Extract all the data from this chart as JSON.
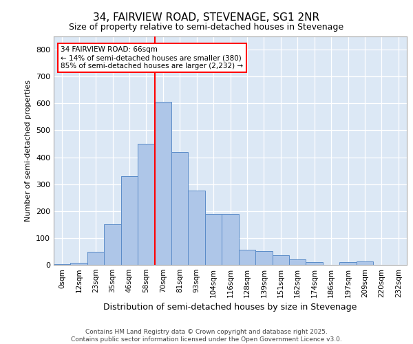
{
  "title1": "34, FAIRVIEW ROAD, STEVENAGE, SG1 2NR",
  "title2": "Size of property relative to semi-detached houses in Stevenage",
  "xlabel": "Distribution of semi-detached houses by size in Stevenage",
  "ylabel": "Number of semi-detached properties",
  "bin_labels": [
    "0sqm",
    "12sqm",
    "23sqm",
    "35sqm",
    "46sqm",
    "58sqm",
    "70sqm",
    "81sqm",
    "93sqm",
    "104sqm",
    "116sqm",
    "128sqm",
    "139sqm",
    "151sqm",
    "162sqm",
    "174sqm",
    "186sqm",
    "197sqm",
    "209sqm",
    "220sqm",
    "232sqm"
  ],
  "bar_heights": [
    2,
    8,
    48,
    150,
    330,
    450,
    605,
    420,
    275,
    190,
    190,
    55,
    50,
    37,
    20,
    10,
    0,
    10,
    12,
    0,
    0
  ],
  "bar_color": "#aec6e8",
  "bar_edge_color": "#5b8cc8",
  "red_line_x": 6.0,
  "annotation_text": "34 FAIRVIEW ROAD: 66sqm\n← 14% of semi-detached houses are smaller (380)\n85% of semi-detached houses are larger (2,232) →",
  "background_color": "#dce8f5",
  "grid_color": "#ffffff",
  "footer_text": "Contains HM Land Registry data © Crown copyright and database right 2025.\nContains public sector information licensed under the Open Government Licence v3.0.",
  "fig_bg": "#ffffff",
  "ylim": [
    0,
    850
  ],
  "yticks": [
    0,
    100,
    200,
    300,
    400,
    500,
    600,
    700,
    800
  ]
}
